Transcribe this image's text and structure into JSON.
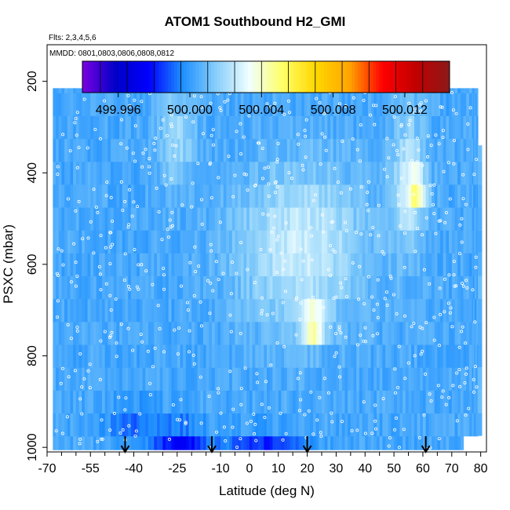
{
  "chart_data": {
    "type": "heatmap",
    "title": "ATOM1 Southbound H2_GMI",
    "flights_note": "Flts: 2,3,4,5,6",
    "dates_note": "MMDD: 0801,0803,0806,0808,0812",
    "xlabel": "Latitude (deg N)",
    "ylabel": "PSXC (mbar)",
    "xlim": [
      -70,
      82
    ],
    "ylim": [
      1010,
      120
    ],
    "x_ticks": [
      "-70",
      "-55",
      "-40",
      "-25",
      "-10",
      "0",
      "10",
      "20",
      "30",
      "40",
      "50",
      "60",
      "70",
      "80"
    ],
    "x_tick_values": [
      -70,
      -55,
      -40,
      -25,
      -10,
      0,
      10,
      20,
      30,
      40,
      50,
      60,
      70,
      80
    ],
    "y_ticks": [
      "200",
      "400",
      "600",
      "800",
      "1000"
    ],
    "y_tick_values": [
      200,
      400,
      600,
      800,
      1000
    ],
    "colorbar": {
      "min": 499.994,
      "max": 500.0145,
      "ticks": [
        "499.996",
        "500.000",
        "500.004",
        "500.008",
        "500.012"
      ],
      "tick_values": [
        499.996,
        500.0,
        500.004,
        500.008,
        500.012
      ],
      "palette": [
        "#7a00e0",
        "#0000c8",
        "#0000ff",
        "#1e90ff",
        "#87cefa",
        "#f0ffff",
        "#ffff66",
        "#ffd700",
        "#ffa500",
        "#ff0000",
        "#c00000",
        "#8b1a1a"
      ]
    },
    "value_range_description": "field mostly 499.999–500.006; minima ~499.996 near 1000 mbar at 25S; maxima ~500.008 near 730 mbar at 22N",
    "column_edges_lat": [
      -68,
      -63,
      -58,
      -53,
      -48,
      -43,
      -38,
      -33,
      -28,
      -23,
      -18,
      -13,
      -8,
      -3,
      2,
      7,
      12,
      17,
      22,
      27,
      32,
      37,
      42,
      47,
      52,
      57,
      62,
      67,
      72,
      77,
      79
    ],
    "layer_edges_mbar": [
      975,
      925,
      875,
      825,
      775,
      725,
      675,
      625,
      575,
      525,
      475,
      425,
      375,
      325,
      275,
      225,
      175
    ],
    "flight_marker_latitudes": [
      -43,
      -13,
      20,
      61
    ],
    "top_of_profile_mbar": {
      "-68": 215,
      "-53": 215,
      "-38": 175,
      "-23": 175,
      "-8": 175,
      "7": 175,
      "22": 175,
      "32": 175,
      "42": 215,
      "57": 215,
      "77": 215
    }
  }
}
